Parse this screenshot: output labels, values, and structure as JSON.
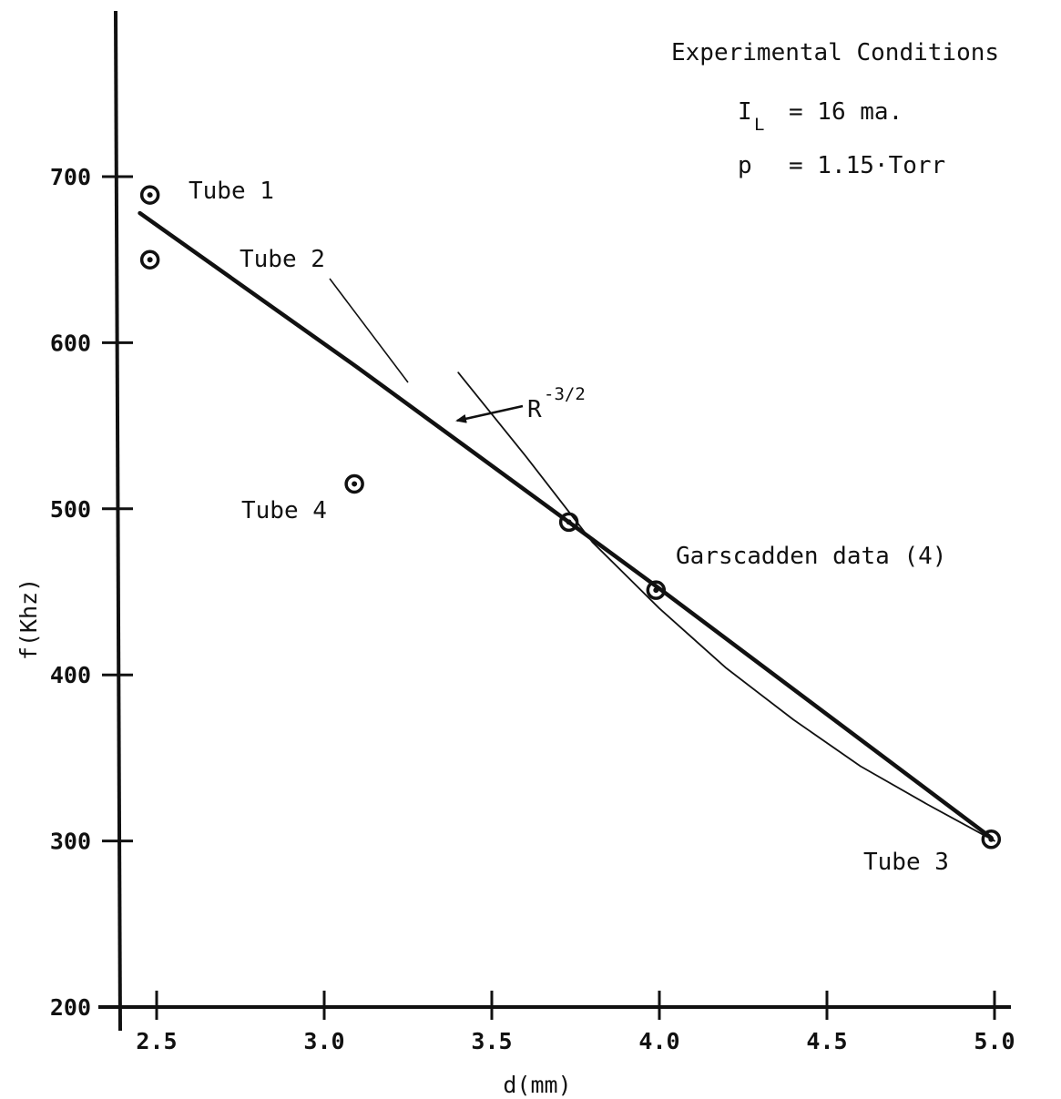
{
  "chart_data": {
    "type": "scatter",
    "xlabel": "d(mm)",
    "ylabel": "f(Khz)",
    "xlim": [
      2.4,
      5.05
    ],
    "ylim": [
      200,
      760
    ],
    "x_ticks": [
      "2.5",
      "3.0",
      "3.5",
      "4.0",
      "4.5",
      "5.0"
    ],
    "x_tick_values": [
      2.5,
      3.0,
      3.5,
      4.0,
      4.5,
      5.0
    ],
    "y_ticks": [
      "200",
      "300",
      "400",
      "500",
      "600",
      "700"
    ],
    "y_tick_values": [
      200,
      300,
      400,
      500,
      600,
      700
    ],
    "grid": false,
    "points": [
      {
        "x": 2.48,
        "y": 689,
        "label": "Tube 1"
      },
      {
        "x": 2.48,
        "y": 650,
        "label": "Tube 2"
      },
      {
        "x": 3.09,
        "y": 515,
        "label": "Tube 4"
      },
      {
        "x": 3.73,
        "y": 492,
        "label": ""
      },
      {
        "x": 3.99,
        "y": 451,
        "label": ""
      },
      {
        "x": 4.99,
        "y": 301,
        "label": "Tube 3"
      }
    ],
    "lines": [
      {
        "name": "Garscadden data (4)",
        "x": [
          2.45,
          3.1,
          3.73,
          4.0,
          4.99
        ],
        "y": [
          678,
          585,
          492,
          452,
          302
        ]
      },
      {
        "name": "R^-3/2",
        "x": [
          3.4,
          3.6,
          3.8,
          4.0,
          4.2,
          4.4,
          4.6,
          4.8,
          5.0
        ],
        "y": [
          582,
          532,
          480,
          440,
          404,
          373,
          345,
          322,
          300
        ]
      }
    ],
    "annotations": {
      "tube1": "Tube 1",
      "tube2": "Tube 2",
      "tube3": "Tube 3",
      "tube4": "Tube 4",
      "garscadden": "Garscadden data (4)",
      "r_base": "R",
      "r_exp": "-3/2"
    },
    "conditions": {
      "title": "Experimental Conditions",
      "il_var": "I",
      "il_sub": "L",
      "il_value": "= 16 ma.",
      "p_var": "p",
      "p_value": "= 1.15·Torr"
    }
  }
}
